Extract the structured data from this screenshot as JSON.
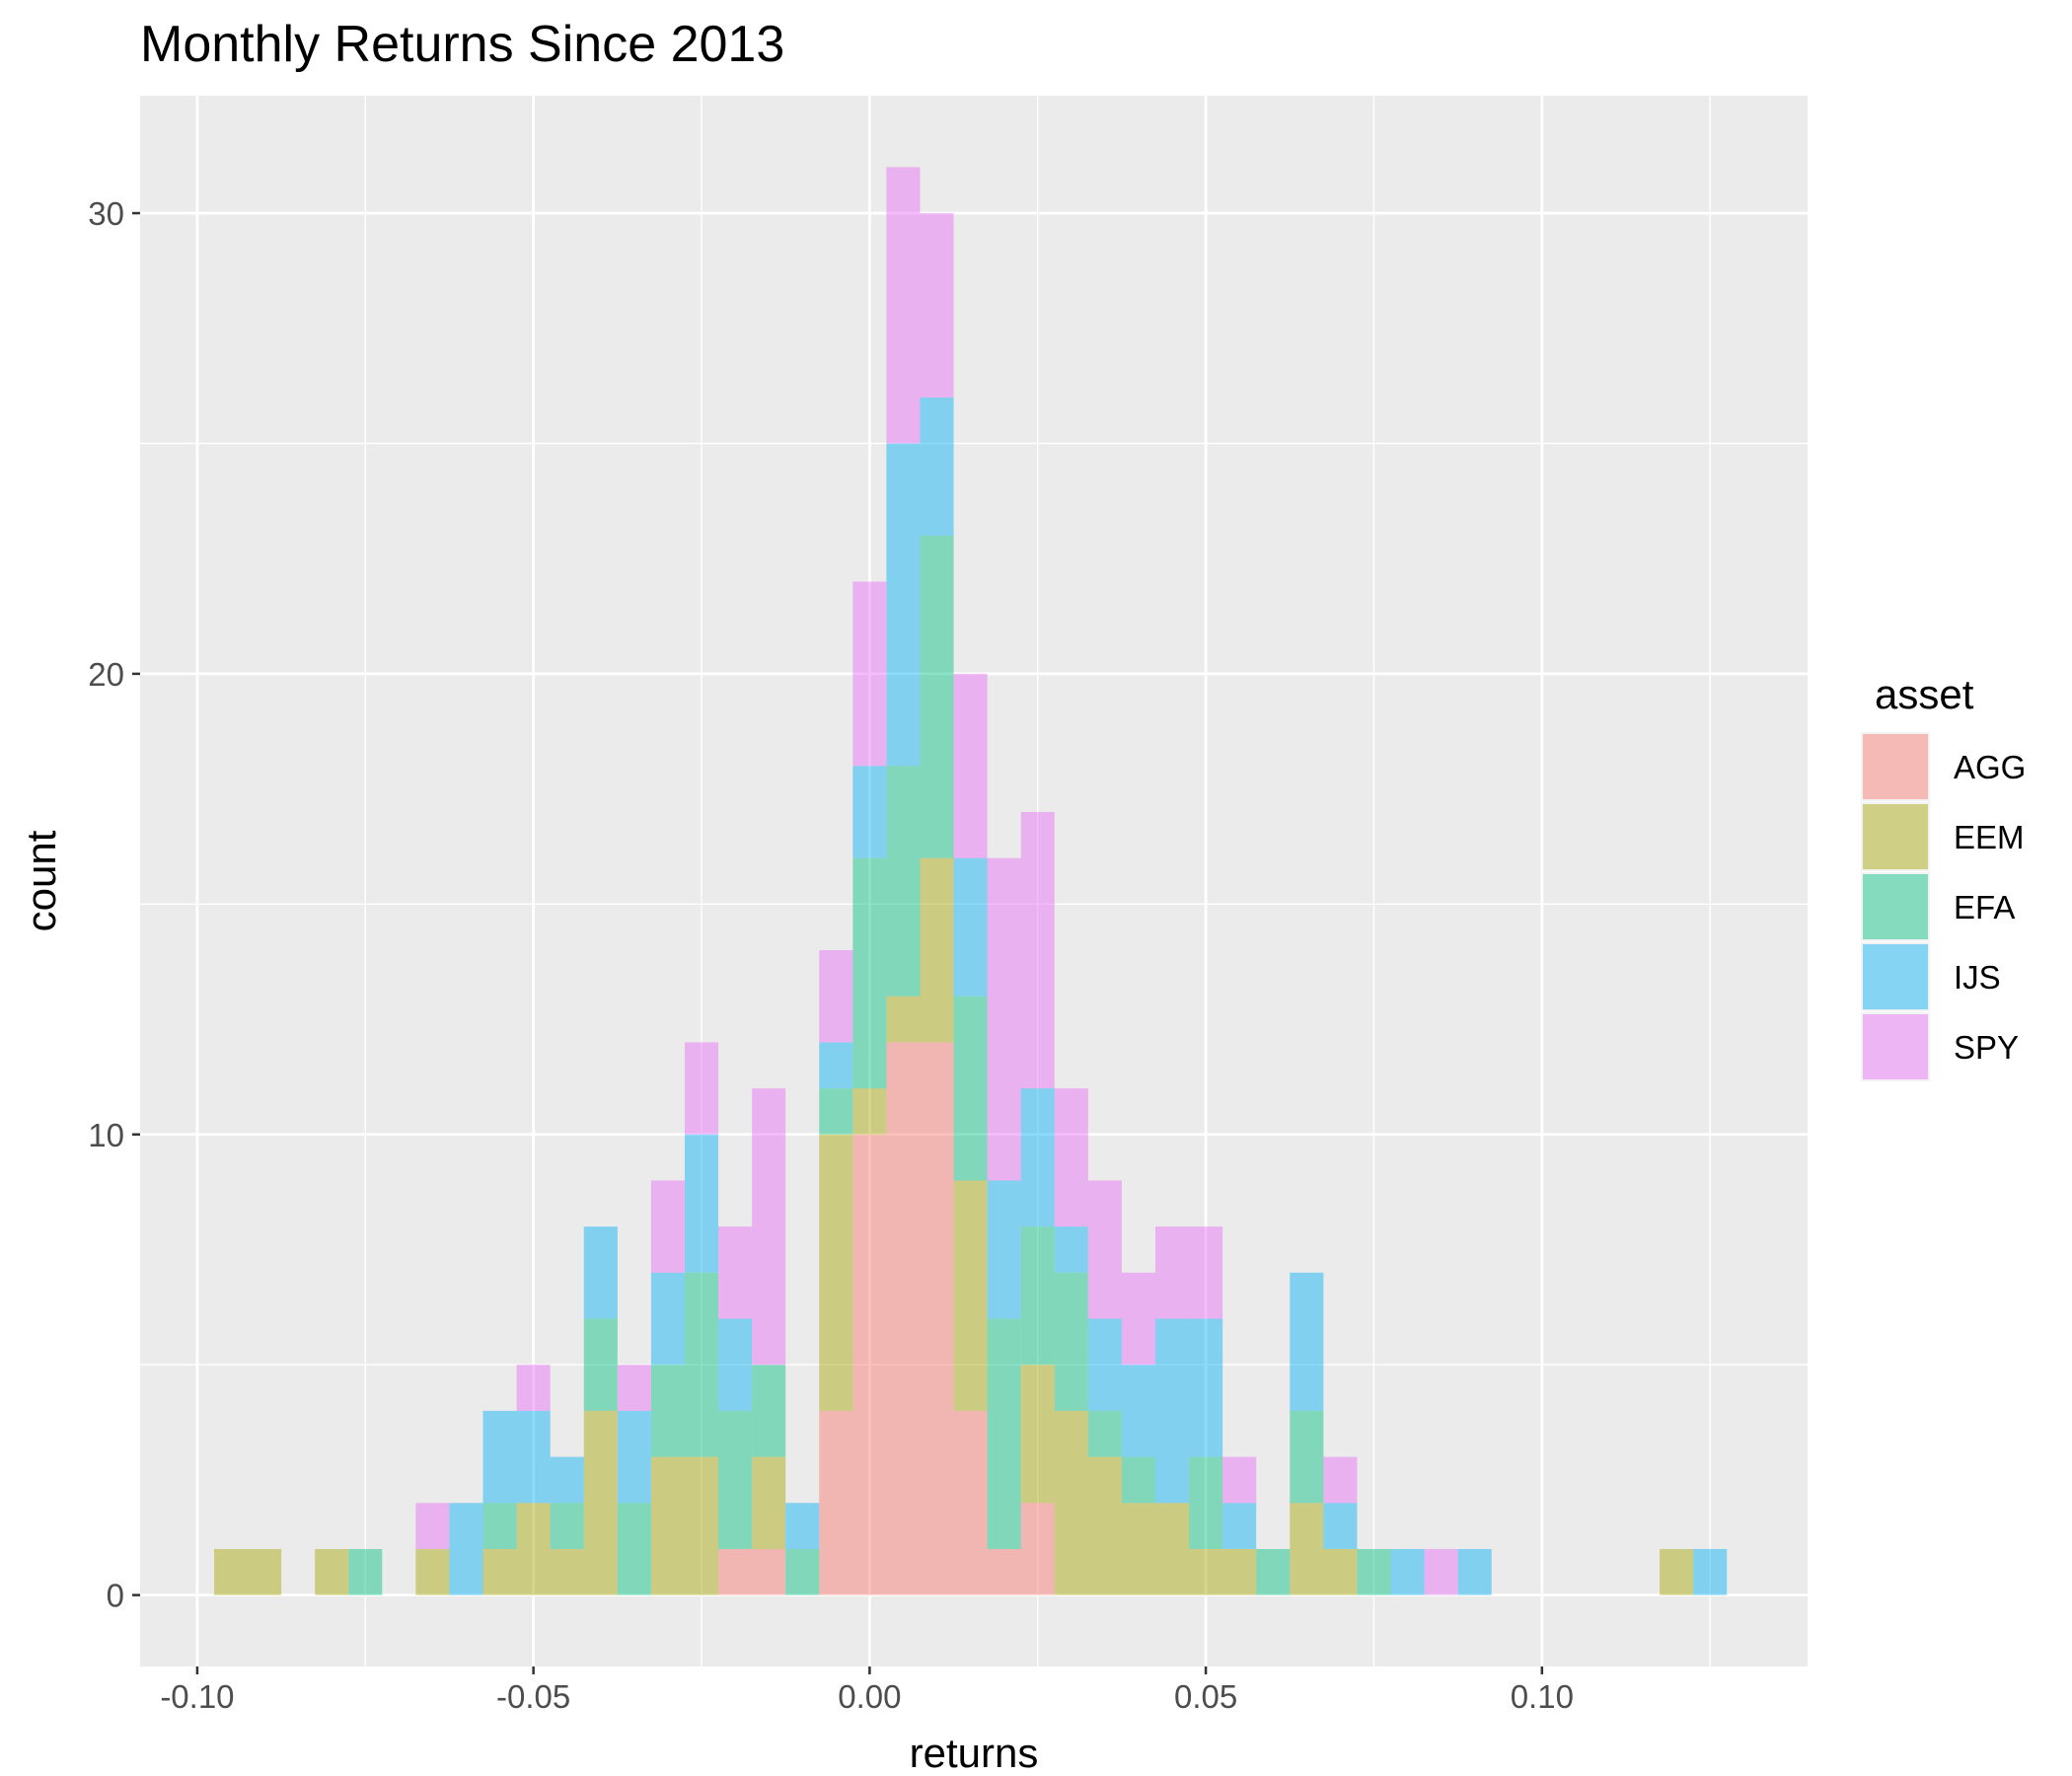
{
  "chart_data": {
    "type": "histogram",
    "title": "Monthly Returns Since 2013",
    "xlabel": "returns",
    "ylabel": "count",
    "xlim": [
      -0.1085,
      0.1395
    ],
    "ylim": [
      -1.55,
      32.55
    ],
    "x_ticks": [
      -0.1,
      -0.05,
      0.0,
      0.05,
      0.1
    ],
    "x_tick_labels": [
      "-0.10",
      "-0.05",
      "0.00",
      "0.05",
      "0.10"
    ],
    "y_ticks": [
      0,
      10,
      20,
      30
    ],
    "y_tick_labels": [
      "0",
      "10",
      "20",
      "30"
    ],
    "x_minor_ticks": [
      -0.075,
      -0.025,
      0.025,
      0.075,
      0.125
    ],
    "y_minor_ticks": [
      5,
      15,
      25
    ],
    "position": "stacked",
    "bin_width": 0.005,
    "bin_starts": [
      -0.0975,
      -0.0925,
      -0.0875,
      -0.0825,
      -0.0775,
      -0.0725,
      -0.0675,
      -0.0625,
      -0.0575,
      -0.0525,
      -0.0475,
      -0.0425,
      -0.0375,
      -0.0325,
      -0.0275,
      -0.0225,
      -0.0175,
      -0.0125,
      -0.0075,
      -0.0025,
      0.0025,
      0.0075,
      0.0125,
      0.0175,
      0.0225,
      0.0275,
      0.0325,
      0.0375,
      0.0425,
      0.0475,
      0.0525,
      0.0575,
      0.0625,
      0.0675,
      0.0725,
      0.0775,
      0.0825,
      0.0875,
      0.0925,
      0.0975,
      0.1025,
      0.1075,
      0.1125,
      0.1175,
      0.1225
    ],
    "background_color": "#ebebeb",
    "grid": true,
    "legend": {
      "title": "asset",
      "position": "right",
      "entries": [
        "AGG",
        "EEM",
        "EFA",
        "IJS",
        "SPY"
      ]
    },
    "series": [
      {
        "name": "AGG",
        "color": "#f8766d",
        "values": [
          0,
          0,
          0,
          0,
          0,
          0,
          0,
          0,
          0,
          0,
          0,
          0,
          0,
          0,
          0,
          1,
          1,
          0,
          4,
          10,
          12,
          12,
          4,
          1,
          2,
          0,
          0,
          0,
          0,
          0,
          0,
          0,
          0,
          0,
          0,
          0,
          0,
          0,
          0,
          0,
          0,
          0,
          0,
          0,
          0
        ]
      },
      {
        "name": "EEM",
        "color": "#a3a500",
        "values": [
          1,
          1,
          0,
          1,
          0,
          0,
          1,
          0,
          1,
          2,
          1,
          4,
          0,
          3,
          3,
          0,
          2,
          0,
          6,
          1,
          1,
          4,
          5,
          0,
          3,
          4,
          3,
          2,
          2,
          1,
          1,
          0,
          2,
          1,
          0,
          0,
          0,
          0,
          0,
          0,
          0,
          0,
          0,
          1,
          0
        ]
      },
      {
        "name": "EFA",
        "color": "#00bf7d",
        "values": [
          0,
          0,
          0,
          0,
          1,
          0,
          0,
          0,
          1,
          0,
          1,
          2,
          2,
          2,
          4,
          3,
          2,
          1,
          1,
          5,
          5,
          7,
          4,
          5,
          3,
          3,
          1,
          1,
          0,
          2,
          0,
          1,
          2,
          0,
          1,
          0,
          0,
          0,
          0,
          0,
          0,
          0,
          0,
          0,
          0
        ]
      },
      {
        "name": "IJS",
        "color": "#00b0f6",
        "values": [
          0,
          0,
          0,
          0,
          0,
          0,
          0,
          2,
          2,
          2,
          1,
          2,
          2,
          2,
          3,
          2,
          0,
          1,
          1,
          2,
          7,
          3,
          3,
          3,
          3,
          1,
          2,
          2,
          4,
          3,
          1,
          0,
          3,
          1,
          0,
          1,
          0,
          1,
          0,
          0,
          0,
          0,
          0,
          0,
          1
        ]
      },
      {
        "name": "SPY",
        "color": "#e76bf3",
        "values": [
          0,
          0,
          0,
          0,
          0,
          0,
          1,
          0,
          0,
          1,
          0,
          0,
          1,
          2,
          2,
          2,
          6,
          0,
          2,
          4,
          6,
          4,
          4,
          7,
          6,
          3,
          3,
          2,
          2,
          2,
          1,
          0,
          0,
          1,
          0,
          0,
          1,
          0,
          0,
          0,
          0,
          0,
          0,
          0,
          0
        ]
      }
    ]
  }
}
